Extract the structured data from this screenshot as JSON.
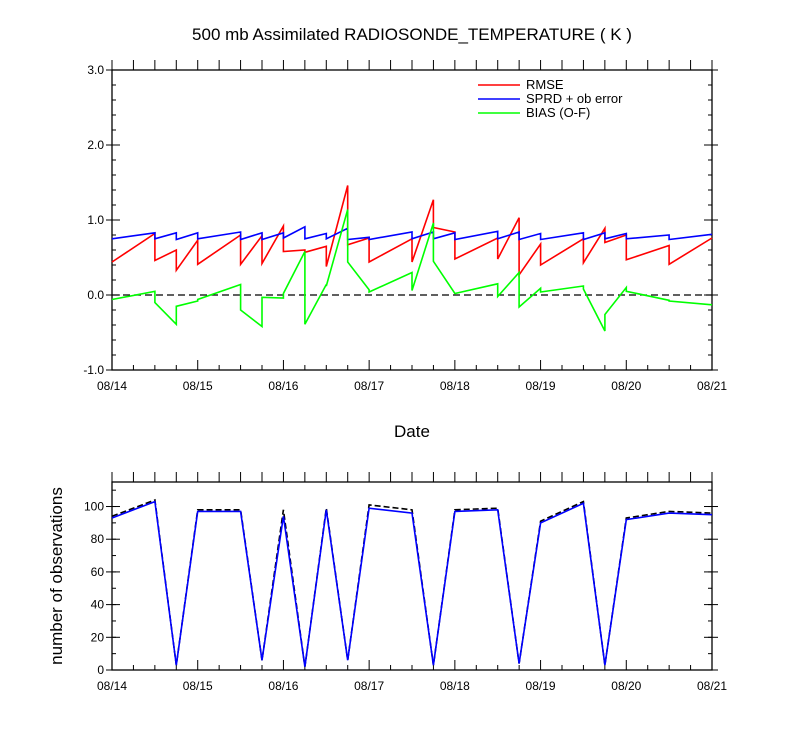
{
  "chart_data": [
    {
      "type": "line",
      "title": "500 mb Assimilated RADIOSONDE_TEMPERATURE ( K )",
      "xlabel": "Date",
      "ylabel": "",
      "xlim": [
        0,
        7
      ],
      "ylim": [
        -1.0,
        3.0
      ],
      "x_tick_labels": [
        "08/14",
        "08/15",
        "08/16",
        "08/17",
        "08/18",
        "08/19",
        "08/20",
        "08/21"
      ],
      "y_tick_labels": [
        "3.0",
        "2.0",
        "1.0",
        "0.0",
        "-1.0"
      ],
      "y_ticks": [
        3.0,
        2.0,
        1.0,
        0.0,
        -1.0
      ],
      "zero_line": "dashed",
      "legend_position": "top-right",
      "series": [
        {
          "name": "RMSE",
          "color": "#ff0000",
          "x": [
            0,
            0.5,
            0.5,
            0.75,
            0.75,
            1.0,
            1.0,
            1.5,
            1.5,
            1.75,
            1.75,
            2.0,
            2.0,
            2.25,
            2.25,
            2.5,
            2.5,
            2.75,
            2.75,
            3.0,
            3.0,
            3.5,
            3.5,
            3.75,
            3.75,
            4.0,
            4.0,
            4.5,
            4.5,
            4.75,
            4.75,
            5.0,
            5.0,
            5.5,
            5.5,
            5.75,
            5.75,
            6.0,
            6.0,
            6.5,
            6.5,
            7.0
          ],
          "y": [
            0.44,
            0.82,
            0.46,
            0.6,
            0.33,
            0.73,
            0.41,
            0.8,
            0.41,
            0.79,
            0.42,
            0.92,
            0.58,
            0.6,
            0.57,
            0.65,
            0.38,
            1.46,
            0.67,
            0.76,
            0.44,
            0.75,
            0.44,
            1.27,
            0.9,
            0.84,
            0.48,
            0.76,
            0.48,
            1.03,
            0.27,
            0.68,
            0.4,
            0.75,
            0.43,
            0.89,
            0.7,
            0.8,
            0.47,
            0.66,
            0.41,
            0.76
          ]
        },
        {
          "name": "SPRD + ob error",
          "color": "#0000ff",
          "x": [
            0,
            0.5,
            0.5,
            0.75,
            0.75,
            1.0,
            1.0,
            1.5,
            1.5,
            1.75,
            1.75,
            2.0,
            2.0,
            2.25,
            2.25,
            2.5,
            2.5,
            2.75,
            2.75,
            3.0,
            3.0,
            3.5,
            3.5,
            3.75,
            3.75,
            4.0,
            4.0,
            4.5,
            4.5,
            4.75,
            4.75,
            5.0,
            5.0,
            5.5,
            5.5,
            5.75,
            5.75,
            6.0,
            6.0,
            6.5,
            6.5,
            7.0
          ],
          "y": [
            0.75,
            0.83,
            0.75,
            0.83,
            0.74,
            0.83,
            0.75,
            0.84,
            0.74,
            0.83,
            0.74,
            0.83,
            0.76,
            0.91,
            0.75,
            0.82,
            0.75,
            0.89,
            0.74,
            0.77,
            0.74,
            0.84,
            0.75,
            0.84,
            0.75,
            0.83,
            0.74,
            0.85,
            0.75,
            0.84,
            0.74,
            0.82,
            0.74,
            0.83,
            0.74,
            0.83,
            0.75,
            0.82,
            0.75,
            0.8,
            0.74,
            0.81
          ]
        },
        {
          "name": "BIAS (O-F)",
          "color": "#00ff00",
          "x": [
            0,
            0.5,
            0.5,
            0.75,
            0.75,
            1.0,
            1.0,
            1.5,
            1.5,
            1.75,
            1.75,
            2.0,
            2.0,
            2.25,
            2.25,
            2.5,
            2.5,
            2.75,
            2.75,
            3.0,
            3.0,
            3.5,
            3.5,
            3.75,
            3.75,
            4.0,
            4.0,
            4.5,
            4.5,
            4.75,
            4.75,
            5.0,
            5.0,
            5.5,
            5.5,
            5.75,
            5.75,
            6.0,
            6.0,
            6.5,
            6.5,
            7.0
          ],
          "y": [
            -0.06,
            0.05,
            -0.1,
            -0.39,
            -0.15,
            -0.08,
            -0.06,
            0.14,
            -0.2,
            -0.42,
            -0.03,
            -0.04,
            0.02,
            0.58,
            -0.39,
            0.14,
            0.12,
            1.14,
            0.44,
            0.07,
            0.04,
            0.3,
            0.06,
            0.96,
            0.45,
            0.02,
            0.02,
            0.15,
            -0.02,
            0.3,
            -0.16,
            0.09,
            0.04,
            0.12,
            0.08,
            -0.48,
            -0.26,
            0.1,
            0.05,
            -0.07,
            -0.08,
            -0.13
          ]
        }
      ]
    },
    {
      "type": "line",
      "title": "",
      "xlabel": "",
      "ylabel": "number of observations",
      "xlim": [
        0,
        7
      ],
      "ylim": [
        0,
        115
      ],
      "x_tick_labels": [
        "08/14",
        "08/15",
        "08/16",
        "08/17",
        "08/18",
        "08/19",
        "08/20",
        "08/21"
      ],
      "y_tick_labels": [
        "100",
        "80",
        "60",
        "40",
        "20",
        "0"
      ],
      "y_ticks": [
        100,
        80,
        60,
        40,
        20,
        0
      ],
      "series": [
        {
          "color": "#000000",
          "style": "dashed",
          "x": [
            0,
            0.5,
            0.75,
            1.0,
            1.5,
            1.75,
            2.0,
            2.25,
            2.5,
            2.75,
            3.0,
            3.5,
            3.75,
            4.0,
            4.5,
            4.75,
            5.0,
            5.5,
            5.75,
            6.0,
            6.5,
            7.0
          ],
          "y": [
            94,
            104,
            3,
            98,
            98,
            6,
            98,
            2,
            99,
            6,
            101,
            98,
            3,
            98,
            99,
            4,
            91,
            103,
            3,
            93,
            97,
            96
          ]
        },
        {
          "color": "#0000ff",
          "style": "solid",
          "x": [
            0,
            0.5,
            0.75,
            1.0,
            1.5,
            1.75,
            2.0,
            2.25,
            2.5,
            2.75,
            3.0,
            3.5,
            3.75,
            4.0,
            4.5,
            4.75,
            5.0,
            5.5,
            5.75,
            6.0,
            6.5,
            7.0
          ],
          "y": [
            93,
            103,
            3,
            97,
            97,
            6,
            94,
            2,
            98,
            6,
            99,
            96,
            3,
            97,
            98,
            4,
            90,
            102,
            3,
            92,
            96,
            95
          ]
        }
      ]
    }
  ]
}
